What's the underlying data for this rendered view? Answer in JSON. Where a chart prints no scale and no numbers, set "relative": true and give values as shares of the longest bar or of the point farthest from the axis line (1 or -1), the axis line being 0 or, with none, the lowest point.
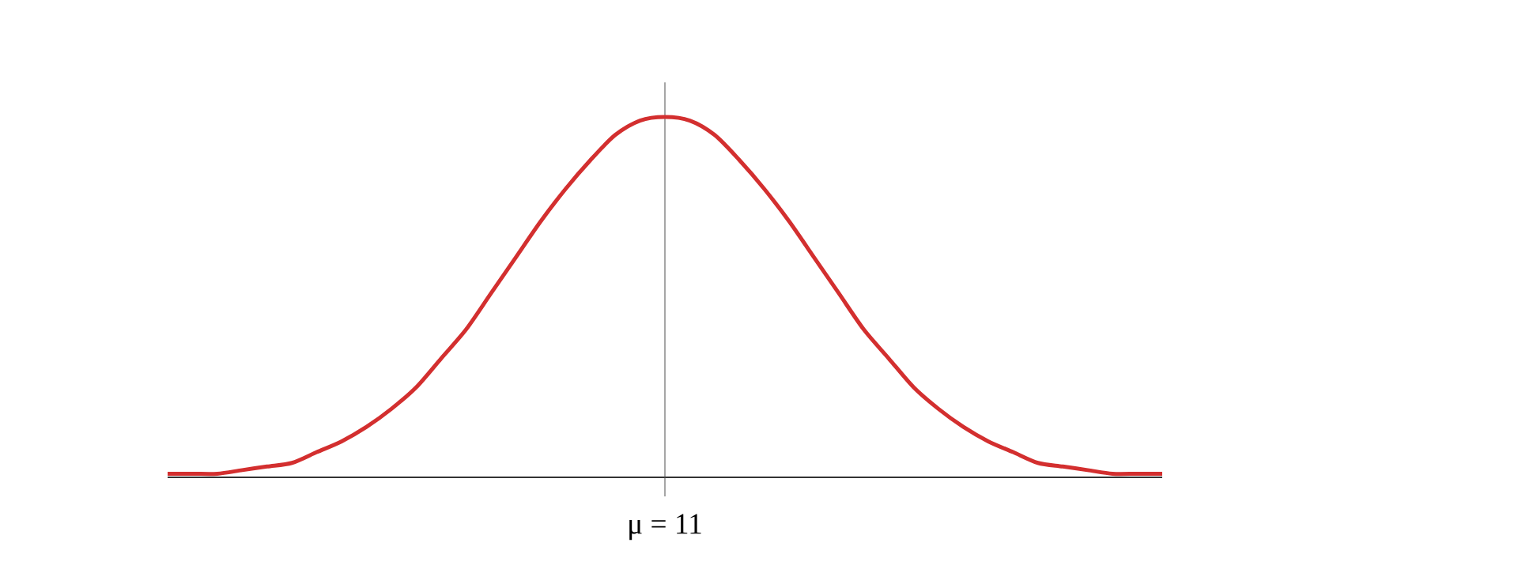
{
  "chart_data": {
    "type": "line",
    "relative": true,
    "categories": [
      null,
      null,
      null,
      null,
      null,
      null,
      null,
      null,
      null,
      null,
      null,
      null,
      null,
      null,
      null,
      null,
      null,
      null,
      null,
      null,
      null,
      null,
      null,
      null,
      null,
      null,
      null,
      null,
      null,
      null,
      null,
      null,
      null,
      null,
      null,
      null,
      null,
      null,
      null,
      null,
      null
    ],
    "values": [
      0.01,
      0.01,
      0.01,
      0.02,
      0.03,
      0.04,
      0.07,
      0.1,
      0.14,
      0.19,
      0.25,
      0.33,
      0.41,
      0.51,
      0.61,
      0.71,
      0.8,
      0.88,
      0.95,
      0.99,
      1,
      0.99,
      0.95,
      0.88,
      0.8,
      0.71,
      0.61,
      0.51,
      0.41,
      0.33,
      0.25,
      0.19,
      0.14,
      0.1,
      0.07,
      0.04,
      0.03,
      0.02,
      0.01,
      0.01,
      0.01
    ],
    "color": "#d32f2f",
    "annotations": [
      "μ = 11"
    ]
  }
}
